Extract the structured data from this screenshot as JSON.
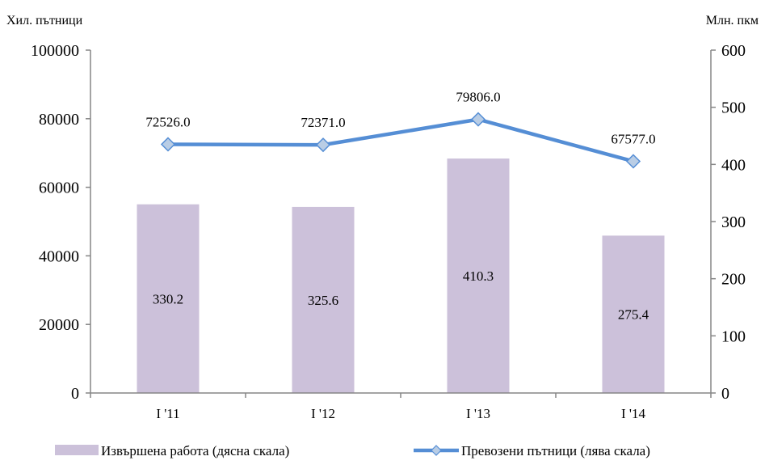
{
  "chart_data": {
    "type": "bar+line",
    "categories": [
      "I '11",
      "I '12",
      "I '13",
      "I '14"
    ],
    "y_left": {
      "unit": "Хил. пътници",
      "range": [
        0,
        100000
      ],
      "ticks": [
        "0",
        "20000",
        "40000",
        "60000",
        "80000",
        "100000"
      ]
    },
    "y_right": {
      "unit": "Млн. пкм",
      "range": [
        0,
        600
      ],
      "ticks": [
        "0",
        "100",
        "200",
        "300",
        "400",
        "500",
        "600"
      ]
    },
    "series": [
      {
        "name": "Извършена работа (дясна скала)",
        "type": "bar",
        "axis": "right",
        "color": "#ccc1da",
        "values": [
          330.2,
          325.6,
          410.3,
          275.4
        ],
        "labels": [
          "330.2",
          "325.6",
          "410.3",
          "275.4"
        ]
      },
      {
        "name": "Превозени пътници (лява скала)",
        "type": "line",
        "axis": "left",
        "color": "#558ed5",
        "marker_color": "#b9cde5",
        "values": [
          72526.0,
          72371.0,
          79806.0,
          67577.0
        ],
        "labels": [
          "72526.0",
          "72371.0",
          "79806.0",
          "67577.0"
        ]
      }
    ],
    "grid": false,
    "legend": "bottom"
  }
}
